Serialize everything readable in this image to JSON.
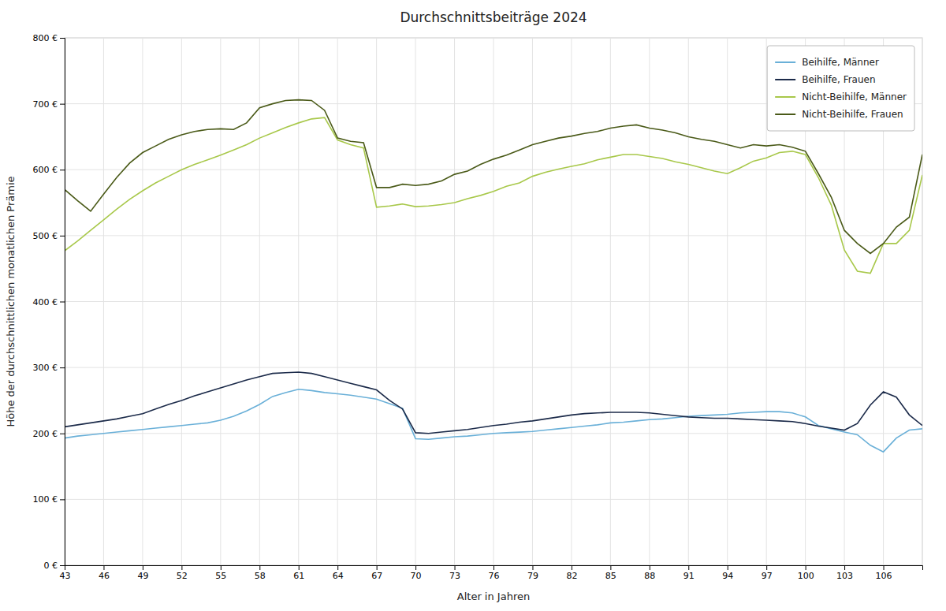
{
  "chart_data": {
    "type": "line",
    "title": "Durchschnittsbeiträge 2024",
    "xlabel": "Alter in Jahren",
    "ylabel": "Höhe der durchschnittlichen monatlichen Prämie",
    "x": [
      43,
      44,
      45,
      46,
      47,
      48,
      49,
      50,
      51,
      52,
      53,
      54,
      55,
      56,
      57,
      58,
      59,
      60,
      61,
      62,
      63,
      64,
      65,
      66,
      67,
      68,
      69,
      70,
      71,
      72,
      73,
      74,
      75,
      76,
      77,
      78,
      79,
      80,
      81,
      82,
      83,
      84,
      85,
      86,
      87,
      88,
      89,
      90,
      91,
      92,
      93,
      94,
      95,
      96,
      97,
      98,
      99,
      100,
      101,
      102,
      103,
      104,
      105,
      106,
      107,
      108,
      109
    ],
    "xlim": [
      43,
      109
    ],
    "xticks": [
      43,
      46,
      49,
      52,
      55,
      58,
      61,
      64,
      67,
      70,
      73,
      76,
      79,
      82,
      85,
      88,
      91,
      94,
      97,
      100,
      103,
      106
    ],
    "ylim": [
      0,
      800
    ],
    "yticks": [
      {
        "value": 0,
        "label": "0 €"
      },
      {
        "value": 100,
        "label": "100 €"
      },
      {
        "value": 200,
        "label": "200 €"
      },
      {
        "value": 300,
        "label": "300 €"
      },
      {
        "value": 400,
        "label": "400 €"
      },
      {
        "value": 500,
        "label": "500 €"
      },
      {
        "value": 600,
        "label": "600 €"
      },
      {
        "value": 700,
        "label": "700 €"
      },
      {
        "value": 800,
        "label": "800 €"
      }
    ],
    "grid": true,
    "legend": "upper right",
    "series": [
      {
        "name": "Beihilfe, Männer",
        "color": "#6ab0d8",
        "values": [
          193,
          196,
          198,
          200,
          202,
          204,
          206,
          208,
          210,
          212,
          214,
          216,
          220,
          226,
          234,
          244,
          256,
          262,
          267,
          265,
          262,
          260,
          258,
          255,
          252,
          245,
          238,
          192,
          191,
          193,
          195,
          196,
          198,
          200,
          201,
          202,
          203,
          205,
          207,
          209,
          211,
          213,
          216,
          217,
          219,
          221,
          222,
          224,
          226,
          227,
          228,
          229,
          231,
          232,
          233,
          233,
          231,
          225,
          212,
          207,
          202,
          198,
          182,
          172,
          193,
          205,
          207
        ]
      },
      {
        "name": "Beihilfe, Frauen",
        "color": "#1c2b4a",
        "values": [
          210,
          213,
          216,
          219,
          222,
          226,
          230,
          237,
          244,
          250,
          257,
          263,
          269,
          275,
          281,
          286,
          291,
          292,
          293,
          291,
          286,
          281,
          276,
          271,
          266,
          250,
          237,
          201,
          200,
          202,
          204,
          206,
          209,
          212,
          214,
          217,
          219,
          222,
          225,
          228,
          230,
          231,
          232,
          232,
          232,
          231,
          229,
          227,
          225,
          224,
          223,
          223,
          222,
          221,
          220,
          219,
          218,
          215,
          211,
          208,
          205,
          215,
          243,
          263,
          255,
          228,
          212
        ]
      },
      {
        "name": "Nicht-Beihilfe, Männer",
        "color": "#a8c84a",
        "values": [
          477,
          492,
          508,
          524,
          540,
          555,
          568,
          580,
          590,
          600,
          608,
          615,
          622,
          630,
          638,
          648,
          656,
          664,
          671,
          677,
          679,
          645,
          638,
          633,
          543,
          545,
          548,
          544,
          545,
          547,
          550,
          556,
          561,
          567,
          575,
          580,
          590,
          596,
          601,
          605,
          609,
          615,
          619,
          623,
          623,
          620,
          617,
          612,
          608,
          603,
          598,
          594,
          603,
          613,
          618,
          626,
          628,
          623,
          588,
          546,
          478,
          446,
          443,
          488,
          488,
          508,
          592
        ]
      },
      {
        "name": "Nicht-Beihilfe, Frauen",
        "color": "#4a5a18",
        "values": [
          570,
          553,
          537,
          563,
          588,
          610,
          626,
          636,
          646,
          653,
          658,
          661,
          662,
          661,
          671,
          694,
          700,
          705,
          706,
          705,
          690,
          648,
          643,
          641,
          573,
          573,
          578,
          576,
          578,
          583,
          593,
          598,
          608,
          616,
          622,
          630,
          638,
          643,
          648,
          651,
          655,
          658,
          663,
          666,
          668,
          663,
          660,
          656,
          650,
          646,
          643,
          638,
          633,
          638,
          636,
          638,
          634,
          628,
          594,
          558,
          508,
          488,
          473,
          488,
          513,
          528,
          623
        ]
      }
    ]
  }
}
